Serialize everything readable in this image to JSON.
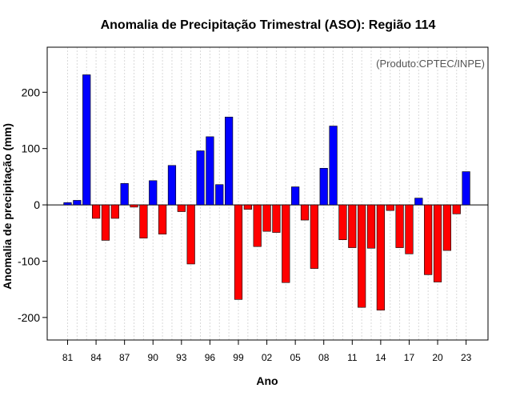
{
  "chart_data": {
    "type": "bar",
    "title": "Anomalia de Precipitação Trimestral (ASO): Região 114",
    "xlabel": "Ano",
    "ylabel": "Anomalia de precipitação (mm)",
    "annotation": "(Produto:CPTEC/INPE)",
    "ylim": [
      -240,
      280
    ],
    "yticks": [
      -200,
      -100,
      0,
      100,
      200
    ],
    "grid": true,
    "positive_color": "#0000ff",
    "negative_color": "#ff0000",
    "categories": [
      "1981",
      "1982",
      "1983",
      "1984",
      "1985",
      "1986",
      "1987",
      "1988",
      "1989",
      "1990",
      "1991",
      "1992",
      "1993",
      "1994",
      "1995",
      "1996",
      "1997",
      "1998",
      "1999",
      "2000",
      "2001",
      "2002",
      "2003",
      "2004",
      "2005",
      "2006",
      "2007",
      "2008",
      "2009",
      "2010",
      "2011",
      "2012",
      "2013",
      "2014",
      "2015",
      "2016",
      "2017",
      "2018",
      "2019",
      "2020",
      "2021",
      "2022",
      "2023"
    ],
    "values": [
      4,
      8,
      231,
      -24,
      -63,
      -24,
      38,
      -4,
      -59,
      43,
      -52,
      70,
      -12,
      -105,
      96,
      121,
      36,
      156,
      -168,
      -8,
      -74,
      -47,
      -49,
      -138,
      32,
      -27,
      -113,
      65,
      140,
      -62,
      -76,
      -182,
      -77,
      -187,
      -10,
      -76,
      -87,
      12,
      -124,
      -137,
      -81,
      -16,
      59
    ],
    "xtick_labels": [
      "81",
      "84",
      "87",
      "90",
      "93",
      "96",
      "99",
      "02",
      "05",
      "08",
      "11",
      "14",
      "17",
      "20",
      "23"
    ]
  }
}
